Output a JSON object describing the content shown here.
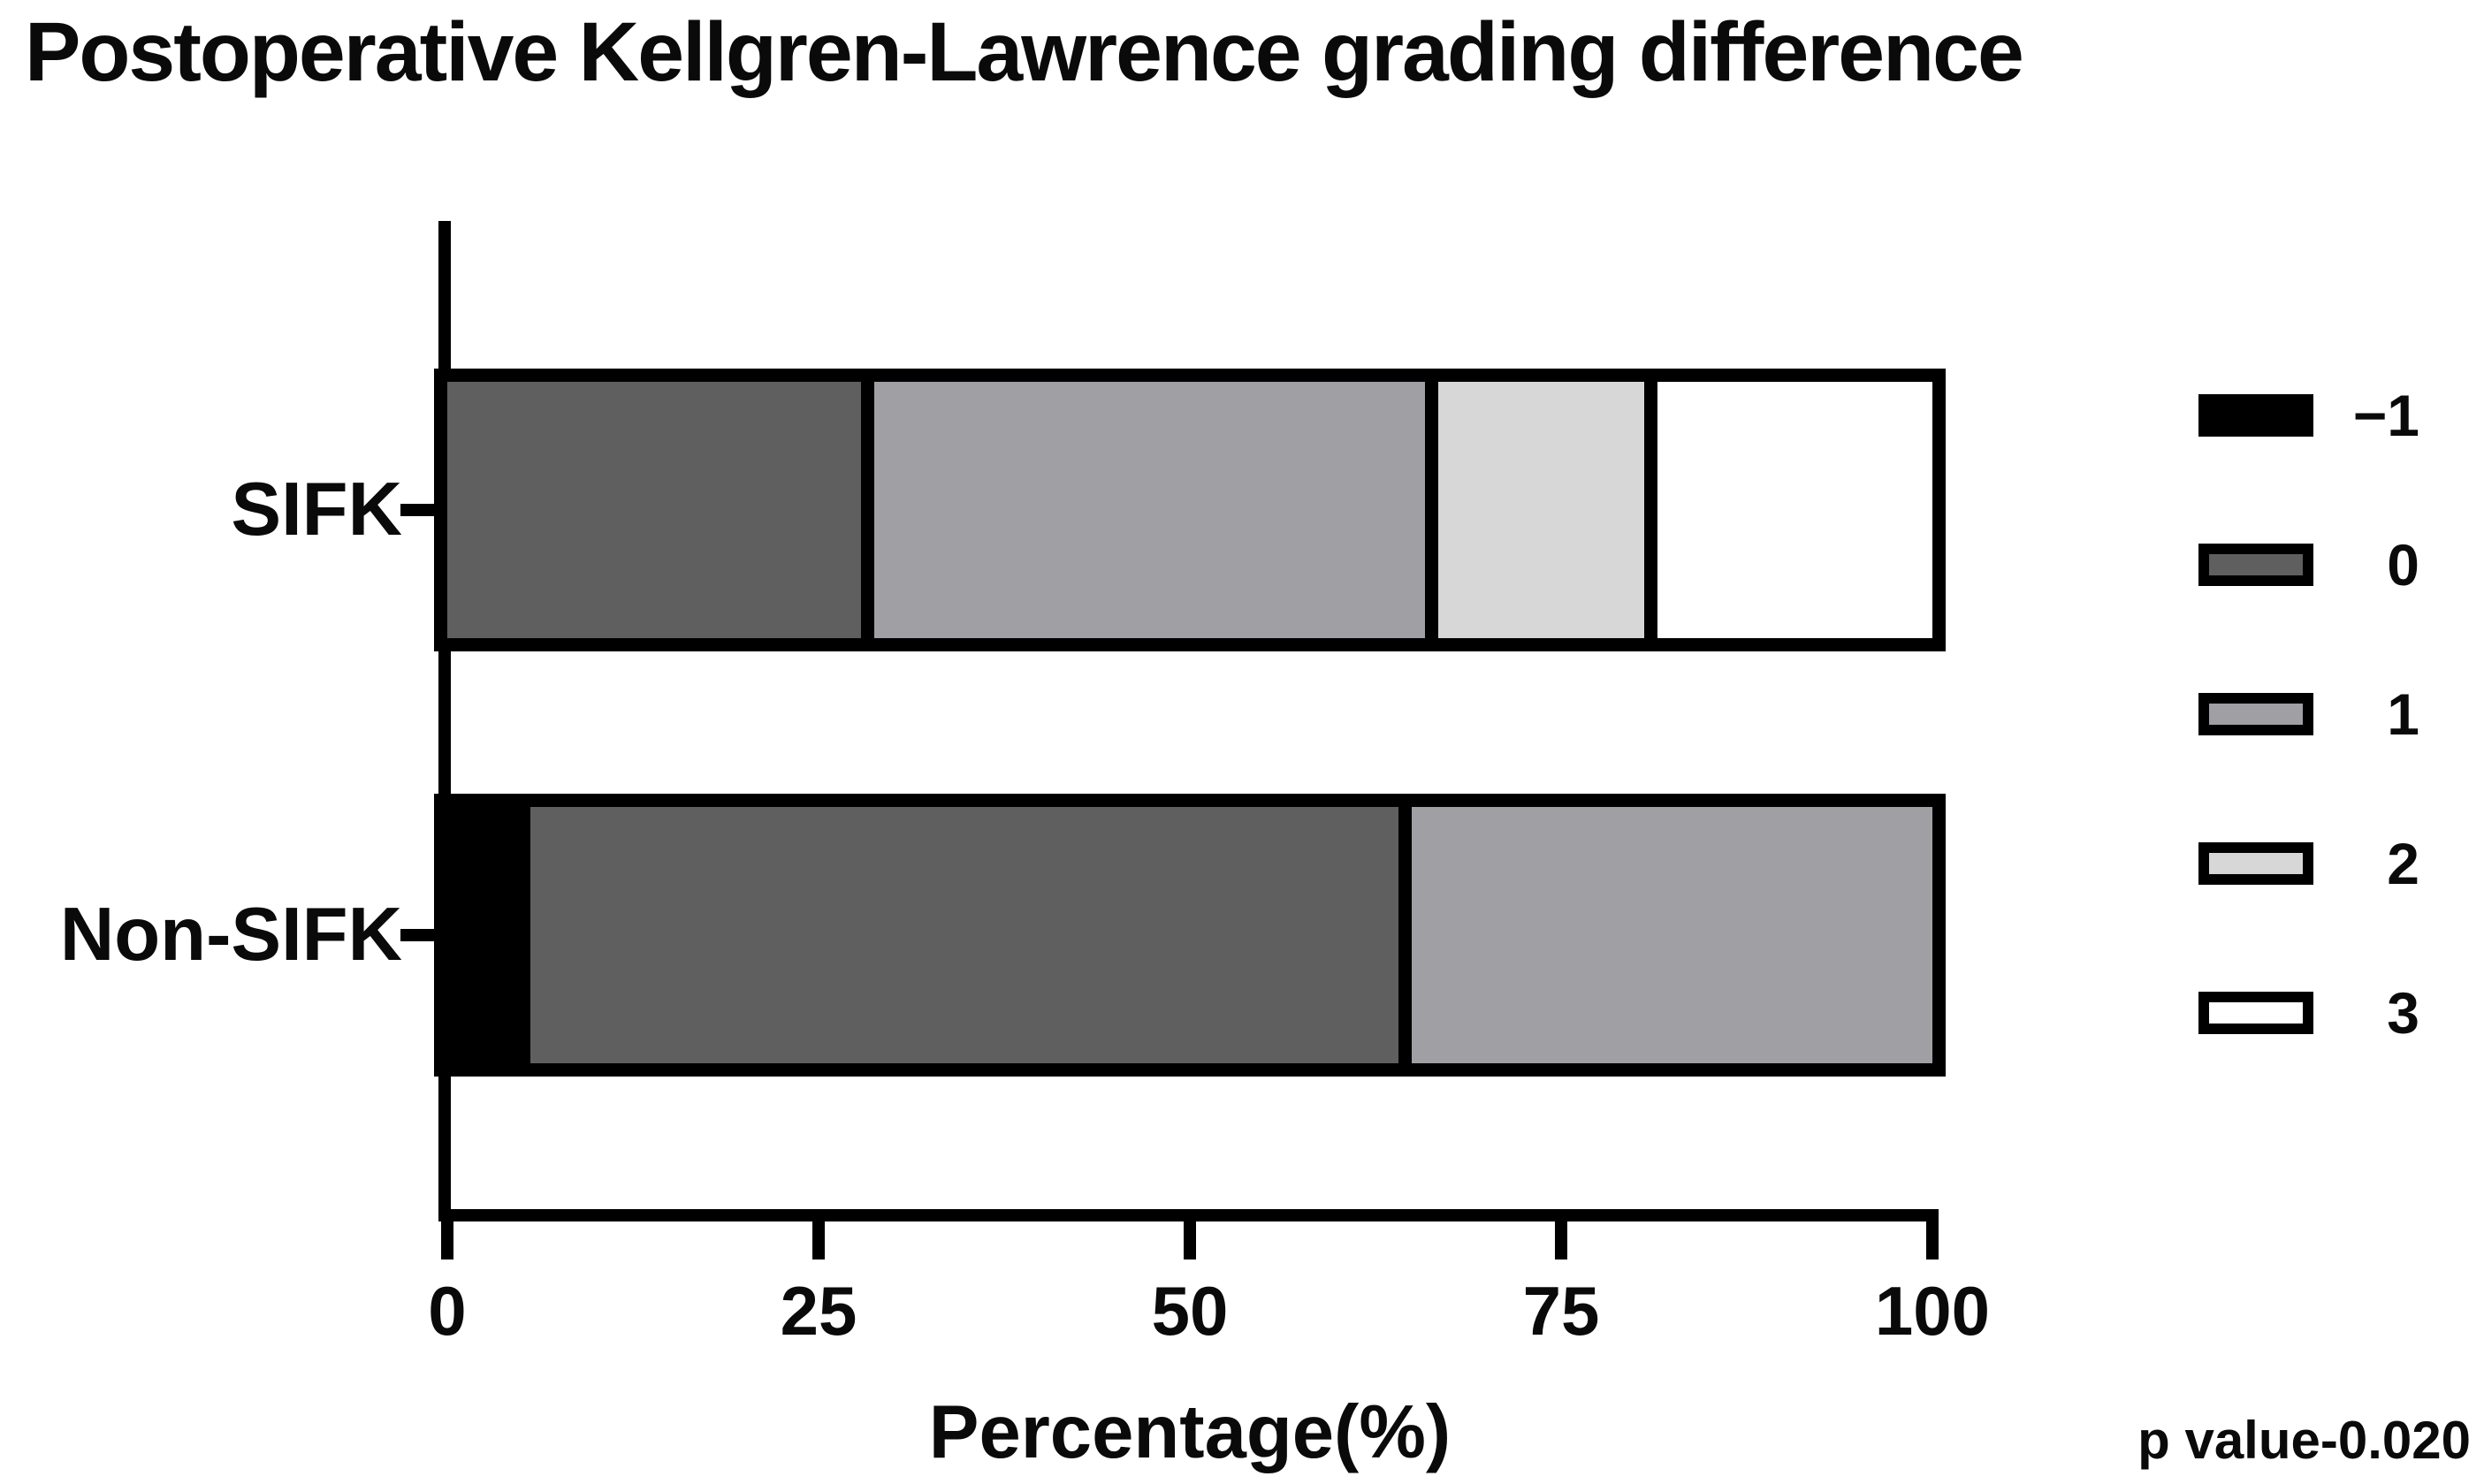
{
  "chart_data": {
    "type": "bar",
    "orientation": "horizontal-stacked",
    "title": "Postoperative Kellgren-Lawrence grading difference",
    "categories": [
      "SIFK",
      "Non-SIFK"
    ],
    "series": [
      {
        "name": "−1",
        "color": "#000000",
        "values": [
          0,
          4.8
        ]
      },
      {
        "name": "0",
        "color": "#5f5f5f",
        "values": [
          28.6,
          59.5
        ]
      },
      {
        "name": "1",
        "color": "#a09fa4",
        "values": [
          38.1,
          35.7
        ]
      },
      {
        "name": "2",
        "color": "#d7d7d7",
        "values": [
          14.3,
          0
        ]
      },
      {
        "name": "3",
        "color": "#ffffff",
        "values": [
          19.0,
          0
        ]
      }
    ],
    "xlabel": "Percentage(%)",
    "xlim": [
      0,
      100
    ],
    "xticks": [
      0,
      25,
      50,
      75,
      100
    ],
    "legend_position": "right",
    "grid": false,
    "annotation": "p value-0.020"
  }
}
